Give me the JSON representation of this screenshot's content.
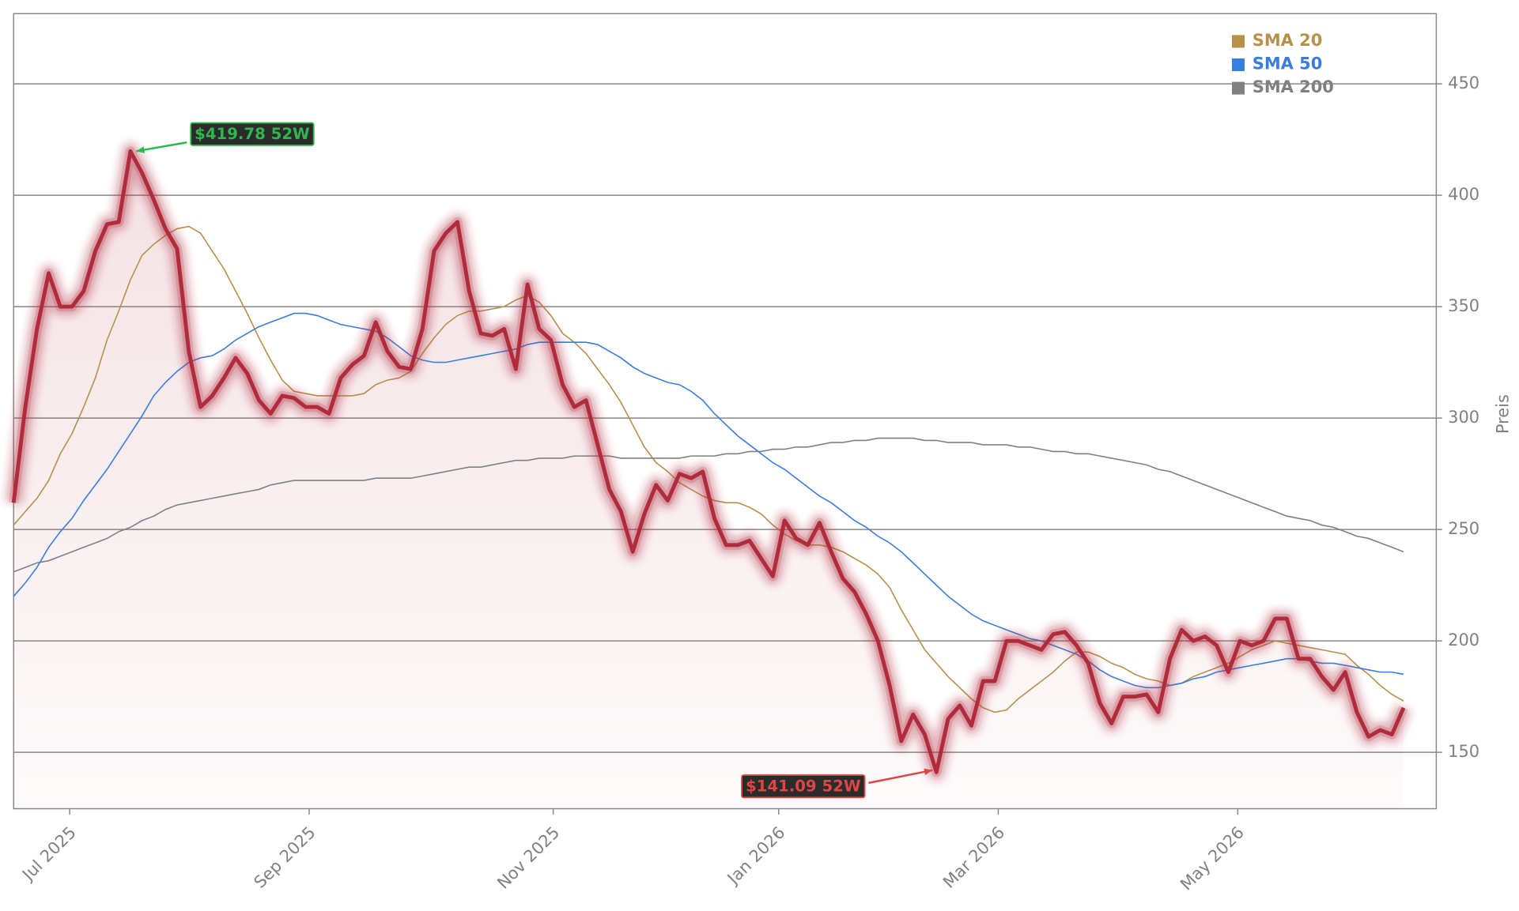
{
  "chart_data": {
    "type": "line",
    "ylabel": "Preis",
    "ylim": [
      124.7,
      481.5
    ],
    "yticks": [
      150,
      200,
      250,
      300,
      350,
      400,
      450
    ],
    "xlim": [
      0,
      121.8
    ],
    "xticks": [
      {
        "value": 4.8,
        "label": "Jul 2025"
      },
      {
        "value": 25.3,
        "label": "Sep 2025"
      },
      {
        "value": 46.2,
        "label": "Nov 2025"
      },
      {
        "value": 65.5,
        "label": "Jan 2026"
      },
      {
        "value": 84.3,
        "label": "Mar 2026"
      },
      {
        "value": 104.8,
        "label": "May 2026"
      }
    ],
    "grid": true,
    "legend": "upper right",
    "series": [
      {
        "color": "#b02c3c",
        "fill": true,
        "values": [
          262,
          305,
          340,
          365,
          350,
          350,
          357,
          375,
          387,
          388,
          419.78,
          410,
          398,
          385,
          376,
          330,
          305,
          310,
          318,
          327,
          320,
          308,
          302,
          310,
          309,
          305,
          305,
          302,
          318,
          324,
          328,
          343,
          330,
          323,
          322,
          340,
          375,
          383,
          388,
          357,
          338,
          337,
          340,
          322,
          360,
          340,
          335,
          315,
          305,
          308,
          288,
          268,
          258,
          240,
          257,
          270,
          263,
          275,
          273,
          276,
          255,
          243,
          243,
          245,
          237,
          229,
          254,
          246,
          243,
          253,
          240,
          228,
          222,
          212,
          200,
          180,
          155,
          167,
          158,
          141.09,
          165,
          171,
          162,
          182,
          182,
          200,
          200,
          198,
          196,
          203,
          204,
          198,
          190,
          172,
          163,
          175,
          175,
          176,
          168,
          192,
          205,
          200,
          202,
          198,
          186,
          200,
          198,
          200,
          210,
          210,
          192,
          192,
          184,
          178,
          186,
          168,
          157,
          160,
          158,
          170
        ]
      },
      {
        "name": "SMA 20",
        "color": "#b8904a",
        "values": [
          252,
          258,
          264,
          272,
          284,
          293,
          305,
          318,
          335,
          348,
          362,
          373,
          378,
          382,
          385,
          386,
          383,
          375,
          367,
          357,
          347,
          336,
          326,
          317,
          312,
          311,
          310,
          310,
          310,
          310,
          311,
          315,
          317,
          318,
          321,
          329,
          336,
          342,
          346,
          348,
          348,
          349,
          350,
          353,
          355,
          352,
          346,
          338,
          334,
          329,
          322,
          315,
          307,
          297,
          287,
          280,
          276,
          271,
          268,
          265,
          263,
          262,
          262,
          260,
          257,
          252,
          248,
          245,
          243,
          243,
          242,
          240,
          237,
          234,
          230,
          224,
          214,
          205,
          196,
          190,
          184,
          179,
          174,
          170,
          168,
          169,
          174,
          178,
          182,
          186,
          191,
          195,
          195,
          193,
          190,
          188,
          185,
          183,
          182,
          180,
          181,
          184,
          186,
          188,
          190,
          193,
          196,
          198,
          200,
          199,
          198,
          197,
          196,
          195,
          194,
          189,
          185,
          180,
          176,
          173
        ]
      },
      {
        "name": "SMA 50",
        "color": "#3a7de0",
        "values": [
          220,
          226,
          233,
          242,
          249,
          255,
          263,
          270,
          277,
          285,
          293,
          301,
          310,
          316,
          321,
          325,
          327,
          328,
          331,
          335,
          338,
          341,
          343,
          345,
          347,
          347,
          346,
          344,
          342,
          341,
          340,
          339,
          336,
          332,
          328,
          326,
          325,
          325,
          326,
          327,
          328,
          329,
          330,
          331,
          333,
          334,
          334,
          334,
          334,
          334,
          333,
          330,
          327,
          323,
          320,
          318,
          316,
          315,
          312,
          308,
          302,
          297,
          292,
          288,
          284,
          280,
          277,
          273,
          269,
          265,
          262,
          258,
          254,
          251,
          247,
          244,
          240,
          235,
          230,
          225,
          220,
          216,
          212,
          209,
          207,
          205,
          203,
          201,
          200,
          198,
          196,
          194,
          191,
          187,
          184,
          182,
          180,
          179,
          179,
          180,
          181,
          183,
          184,
          186,
          187,
          188,
          189,
          190,
          191,
          192,
          192,
          191,
          190,
          190,
          189,
          188,
          187,
          186,
          186,
          185
        ]
      },
      {
        "name": "SMA 200",
        "color": "#808080",
        "values": [
          231,
          233,
          235,
          236,
          238,
          240,
          242,
          244,
          246,
          249,
          251,
          254,
          256,
          259,
          261,
          262,
          263,
          264,
          265,
          266,
          267,
          268,
          270,
          271,
          272,
          272,
          272,
          272,
          272,
          272,
          272,
          273,
          273,
          273,
          273,
          274,
          275,
          276,
          277,
          278,
          278,
          279,
          280,
          281,
          281,
          282,
          282,
          282,
          283,
          283,
          283,
          283,
          282,
          282,
          282,
          282,
          282,
          282,
          283,
          283,
          283,
          284,
          284,
          285,
          285,
          286,
          286,
          287,
          287,
          288,
          289,
          289,
          290,
          290,
          291,
          291,
          291,
          291,
          290,
          290,
          289,
          289,
          289,
          288,
          288,
          288,
          287,
          287,
          286,
          285,
          285,
          284,
          284,
          283,
          282,
          281,
          280,
          279,
          277,
          276,
          274,
          272,
          270,
          268,
          266,
          264,
          262,
          260,
          258,
          256,
          255,
          254,
          252,
          251,
          249,
          247,
          246,
          244,
          242,
          240
        ]
      }
    ],
    "annotations": [
      {
        "text": "$419.78 52W",
        "color": "#2db84d"
      },
      {
        "text": "$141.09 52W",
        "color": "#e04444"
      }
    ]
  }
}
